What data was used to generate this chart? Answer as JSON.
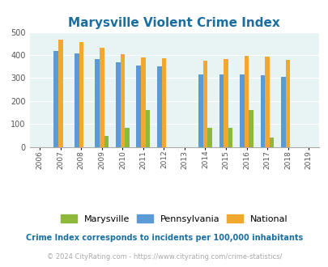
{
  "title": "Marysville Violent Crime Index",
  "all_years": [
    2006,
    2007,
    2008,
    2009,
    2010,
    2011,
    2012,
    2013,
    2014,
    2015,
    2016,
    2017,
    2018,
    2019
  ],
  "bar_years": [
    2007,
    2008,
    2009,
    2010,
    2011,
    2012,
    2014,
    2015,
    2016,
    2017,
    2018
  ],
  "marysville": [
    0,
    0,
    47,
    83,
    160,
    0,
    83,
    83,
    160,
    42,
    0
  ],
  "pennsylvania": [
    418,
    408,
    382,
    368,
    353,
    349,
    317,
    317,
    317,
    312,
    305
  ],
  "national": [
    468,
    455,
    432,
    405,
    388,
    387,
    377,
    383,
    397,
    394,
    380
  ],
  "color_marysville": "#8db83b",
  "color_pennsylvania": "#5b9bd5",
  "color_national": "#f0a830",
  "bg_color": "#e8f4f4",
  "ylim": [
    0,
    500
  ],
  "yticks": [
    0,
    100,
    200,
    300,
    400,
    500
  ],
  "legend_labels": [
    "Marysville",
    "Pennsylvania",
    "National"
  ],
  "footnote1": "Crime Index corresponds to incidents per 100,000 inhabitants",
  "footnote2": "© 2024 CityRating.com - https://www.cityrating.com/crime-statistics/",
  "title_color": "#1a6fa0",
  "footnote1_color": "#1a6fa0",
  "footnote2_color": "#aaaaaa",
  "bar_width": 0.22
}
